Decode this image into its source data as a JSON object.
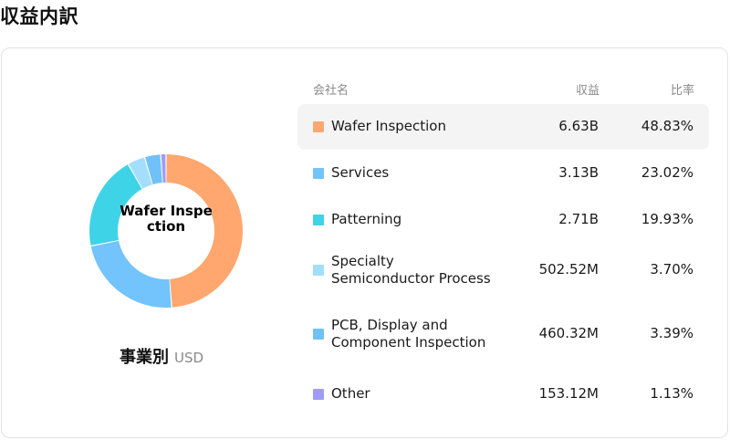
{
  "title": "収益内訳",
  "chart_data": {
    "type": "pie",
    "variant": "donut",
    "center_label": "Wafer Inspection",
    "caption": "事業別",
    "unit": "USD",
    "categories": [
      "Wafer Inspection",
      "Services",
      "Patterning",
      "Specialty Semiconductor Process",
      "PCB, Display and Component Inspection",
      "Other"
    ],
    "values": [
      48.83,
      23.02,
      19.93,
      3.7,
      3.39,
      1.13
    ],
    "colors": [
      "#FFA76F",
      "#73C3FD",
      "#3FD3E8",
      "#A3DEFC",
      "#70C1F8",
      "#A09CF6"
    ]
  },
  "table": {
    "headers": {
      "name": "会社名",
      "revenue": "収益",
      "ratio": "比率"
    },
    "rows": [
      {
        "name": "Wafer Inspection",
        "revenue": "6.63B",
        "ratio": "48.83%",
        "color": "#FFA76F",
        "highlighted": true
      },
      {
        "name": "Services",
        "revenue": "3.13B",
        "ratio": "23.02%",
        "color": "#73C3FD"
      },
      {
        "name": "Patterning",
        "revenue": "2.71B",
        "ratio": "19.93%",
        "color": "#3FD3E8"
      },
      {
        "name_line1": "Specialty",
        "name_line2": "Semiconductor Process",
        "revenue": "502.52M",
        "ratio": "3.70%",
        "color": "#A3DEFC"
      },
      {
        "name_line1": "PCB, Display and",
        "name_line2": "Component Inspection",
        "revenue": "460.32M",
        "ratio": "3.39%",
        "color": "#70C1F8"
      },
      {
        "name": "Other",
        "revenue": "153.12M",
        "ratio": "1.13%",
        "color": "#A09CF6"
      }
    ]
  }
}
